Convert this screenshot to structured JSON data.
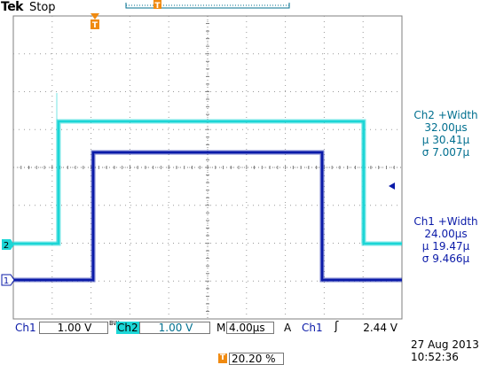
{
  "header": {
    "brand": "Tek",
    "acquisition_state": "Stop",
    "trigger_marker": "T"
  },
  "channels": {
    "ch1": {
      "marker": "1",
      "label": "Ch1",
      "scale": "1.00 V",
      "color": "#0a1aa8"
    },
    "ch2": {
      "marker": "2",
      "label": "Ch2",
      "scale": "1.00 V",
      "color": "#1cd6d6",
      "bw_limit": "BW"
    }
  },
  "measurements": {
    "ch2_width": {
      "title": "Ch2 +Width",
      "value": "32.00µs",
      "mean": "µ 30.41µ",
      "stddev": "σ 7.007µ"
    },
    "ch1_width": {
      "title": "Ch1 +Width",
      "value": "24.00µs",
      "mean": "µ 19.47µ",
      "stddev": "σ 9.466µ"
    }
  },
  "timebase": {
    "prefix": "M",
    "value": "4.00µs"
  },
  "trigger": {
    "mode": "A",
    "source": "Ch1",
    "slope_icon": "rising-edge-icon",
    "slope_glyph": "ʃ",
    "level": "2.44 V",
    "position_marker": "T",
    "position": "20.20 %"
  },
  "datetime": {
    "date": "27 Aug 2013",
    "time": "10:52:36"
  },
  "colors": {
    "grid": "#7f7f7f",
    "ch1": "#0a1aa8",
    "ch2": "#1cd6d6",
    "trigger": "#f08a10",
    "measure_ch2": "#006f8f"
  }
}
